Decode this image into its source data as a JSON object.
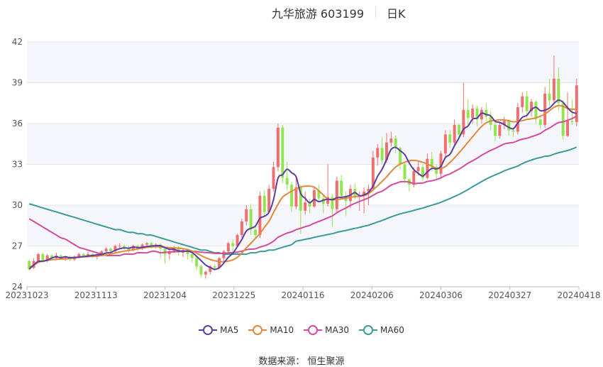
{
  "title": {
    "name": "九华旅游 603199",
    "period": "日K"
  },
  "source": "数据来源： 恒生聚源",
  "chart_data": {
    "type": "candlestick",
    "x_ticks": [
      "20231023",
      "20231113",
      "20231204",
      "20231225",
      "20240116",
      "20240206",
      "20240306",
      "20240327",
      "20240418"
    ],
    "ylim": [
      24,
      42
    ],
    "y_ticks": [
      24,
      27,
      30,
      33,
      36,
      39,
      42
    ],
    "colors": {
      "up": "#f06e6e",
      "down": "#91e650"
    },
    "candles": [
      [
        25.9,
        25.3,
        26.0,
        25.2
      ],
      [
        25.4,
        25.9,
        26.1,
        25.3
      ],
      [
        25.9,
        26.4,
        26.5,
        25.8
      ],
      [
        26.4,
        25.9,
        26.5,
        25.8
      ],
      [
        25.9,
        26.3,
        26.4,
        25.8
      ],
      [
        26.3,
        26.1,
        26.4,
        26.0
      ],
      [
        26.1,
        26.3,
        26.5,
        26.0
      ],
      [
        26.3,
        26.1,
        26.4,
        26.0
      ],
      [
        26.1,
        26.2,
        26.3,
        25.9
      ],
      [
        26.2,
        26.0,
        26.3,
        25.9
      ],
      [
        26.0,
        26.2,
        26.3,
        25.9
      ],
      [
        26.2,
        26.4,
        26.5,
        26.1
      ],
      [
        26.4,
        26.3,
        26.5,
        26.2
      ],
      [
        26.3,
        26.4,
        26.6,
        26.2
      ],
      [
        26.4,
        26.2,
        26.5,
        26.1
      ],
      [
        26.2,
        26.4,
        26.5,
        26.0
      ],
      [
        26.4,
        26.6,
        26.7,
        26.3
      ],
      [
        26.6,
        26.8,
        26.9,
        26.5
      ],
      [
        26.8,
        26.6,
        26.9,
        26.5
      ],
      [
        26.6,
        27.0,
        27.1,
        26.5
      ],
      [
        27.0,
        27.0,
        27.2,
        26.8
      ],
      [
        27.0,
        26.9,
        27.1,
        26.7
      ],
      [
        26.9,
        26.7,
        27.0,
        26.5
      ],
      [
        26.7,
        27.0,
        27.1,
        26.6
      ],
      [
        27.0,
        26.8,
        27.1,
        26.6
      ],
      [
        26.8,
        27.1,
        27.2,
        26.7
      ],
      [
        27.1,
        27.2,
        27.3,
        27.0
      ],
      [
        27.2,
        26.9,
        27.3,
        26.8
      ],
      [
        26.9,
        27.1,
        27.2,
        26.8
      ],
      [
        27.1,
        26.8,
        27.2,
        26.1
      ],
      [
        26.8,
        26.4,
        26.9,
        25.7
      ],
      [
        26.4,
        26.6,
        26.7,
        26.0
      ],
      [
        26.6,
        26.9,
        27.0,
        26.5
      ],
      [
        26.9,
        26.5,
        27.0,
        26.3
      ],
      [
        26.5,
        26.7,
        26.8,
        26.2
      ],
      [
        26.7,
        26.4,
        26.8,
        26.0
      ],
      [
        26.4,
        26.1,
        26.6,
        25.8
      ],
      [
        26.1,
        25.5,
        26.2,
        25.2
      ],
      [
        25.5,
        24.9,
        25.6,
        24.7
      ],
      [
        24.9,
        25.1,
        25.2,
        24.6
      ],
      [
        25.1,
        25.5,
        25.6,
        24.9
      ],
      [
        25.5,
        25.4,
        25.7,
        25.2
      ],
      [
        25.4,
        26.1,
        26.2,
        25.3
      ],
      [
        26.1,
        26.6,
        26.7,
        25.9
      ],
      [
        26.6,
        27.2,
        27.3,
        26.4
      ],
      [
        27.2,
        27.0,
        27.5,
        26.6
      ],
      [
        27.0,
        27.8,
        27.9,
        26.9
      ],
      [
        27.8,
        28.8,
        29.0,
        27.6
      ],
      [
        28.8,
        29.7,
        30.0,
        28.5
      ],
      [
        29.7,
        28.2,
        30.1,
        27.8
      ],
      [
        28.2,
        27.8,
        28.5,
        27.6
      ],
      [
        27.8,
        30.7,
        31.0,
        27.6
      ],
      [
        30.7,
        29.5,
        31.1,
        29.2
      ],
      [
        29.5,
        31.2,
        31.5,
        29.4
      ],
      [
        31.2,
        32.8,
        33.2,
        31.0
      ],
      [
        32.8,
        35.7,
        36.0,
        32.5
      ],
      [
        35.7,
        32.0,
        35.9,
        31.6
      ],
      [
        32.0,
        31.5,
        33.2,
        31.1
      ],
      [
        31.5,
        29.9,
        31.7,
        29.5
      ],
      [
        29.9,
        31.3,
        32.0,
        29.7
      ],
      [
        31.3,
        29.6,
        31.5,
        27.9
      ],
      [
        29.6,
        30.2,
        31.0,
        29.3
      ],
      [
        30.2,
        29.9,
        30.5,
        29.4
      ],
      [
        29.9,
        31.1,
        31.3,
        29.8
      ],
      [
        31.1,
        30.5,
        31.5,
        30.2
      ],
      [
        30.5,
        30.1,
        30.7,
        29.4
      ],
      [
        30.1,
        30.6,
        33.0,
        29.9
      ],
      [
        30.6,
        29.7,
        30.8,
        28.4
      ],
      [
        29.7,
        31.8,
        32.1,
        29.5
      ],
      [
        31.8,
        30.7,
        32.2,
        30.4
      ],
      [
        30.7,
        30.3,
        31.0,
        29.2
      ],
      [
        30.3,
        31.2,
        31.5,
        29.8
      ],
      [
        31.2,
        30.6,
        31.6,
        30.4
      ],
      [
        30.6,
        30.7,
        31.0,
        29.6
      ],
      [
        30.7,
        31.0,
        31.3,
        29.4
      ],
      [
        31.0,
        31.2,
        31.5,
        30.0
      ],
      [
        31.2,
        33.5,
        34.0,
        31.0
      ],
      [
        33.5,
        34.2,
        34.5,
        32.9
      ],
      [
        34.2,
        33.3,
        35.0,
        33.0
      ],
      [
        33.3,
        34.6,
        35.3,
        33.1
      ],
      [
        34.6,
        34.9,
        35.4,
        34.3
      ],
      [
        34.9,
        34.2,
        35.1,
        33.8
      ],
      [
        34.2,
        33.0,
        34.3,
        32.6
      ],
      [
        33.0,
        31.9,
        33.2,
        31.6
      ],
      [
        31.9,
        31.5,
        32.0,
        31.0
      ],
      [
        31.5,
        32.5,
        32.8,
        31.3
      ],
      [
        32.5,
        32.8,
        33.2,
        32.2
      ],
      [
        32.8,
        32.0,
        33.0,
        31.8
      ],
      [
        32.0,
        33.4,
        33.8,
        31.9
      ],
      [
        33.4,
        32.8,
        33.9,
        32.5
      ],
      [
        32.8,
        32.3,
        33.0,
        31.9
      ],
      [
        32.3,
        33.8,
        34.0,
        32.0
      ],
      [
        33.8,
        35.2,
        35.5,
        33.5
      ],
      [
        35.2,
        34.6,
        35.5,
        34.2
      ],
      [
        34.6,
        35.9,
        36.3,
        34.3
      ],
      [
        35.9,
        35.2,
        36.0,
        34.8
      ],
      [
        35.2,
        37.0,
        39.0,
        35.0
      ],
      [
        37.0,
        36.4,
        37.8,
        35.9
      ],
      [
        36.4,
        37.1,
        37.4,
        36.0
      ],
      [
        37.1,
        36.3,
        37.3,
        35.8
      ],
      [
        36.3,
        37.0,
        37.2,
        36.0
      ],
      [
        37.0,
        36.5,
        37.5,
        36.2
      ],
      [
        36.5,
        35.9,
        36.9,
        35.5
      ],
      [
        35.9,
        35.1,
        36.2,
        34.7
      ],
      [
        35.1,
        35.9,
        36.1,
        34.9
      ],
      [
        35.9,
        36.2,
        36.5,
        35.6
      ],
      [
        36.2,
        35.5,
        36.3,
        35.1
      ],
      [
        35.5,
        35.4,
        35.7,
        35.0
      ],
      [
        35.4,
        37.2,
        37.5,
        35.2
      ],
      [
        37.2,
        38.0,
        38.3,
        36.8
      ],
      [
        38.0,
        36.9,
        38.4,
        36.4
      ],
      [
        36.9,
        37.6,
        37.8,
        36.5
      ],
      [
        37.6,
        36.3,
        37.7,
        36.0
      ],
      [
        36.3,
        35.9,
        36.6,
        35.6
      ],
      [
        35.9,
        38.2,
        38.7,
        35.7
      ],
      [
        38.2,
        37.7,
        39.3,
        37.3
      ],
      [
        37.7,
        39.3,
        41.0,
        37.4
      ],
      [
        39.3,
        37.5,
        40.1,
        36.9
      ],
      [
        37.5,
        35.1,
        37.7,
        34.8
      ],
      [
        35.1,
        36.2,
        38.3,
        35.0
      ],
      [
        36.2,
        36.1,
        37.8,
        35.9
      ],
      [
        36.1,
        38.8,
        39.3,
        35.8
      ]
    ],
    "series": [
      {
        "name": "MA5",
        "color": "#5b3ea1"
      },
      {
        "name": "MA10",
        "color": "#e3883a"
      },
      {
        "name": "MA30",
        "color": "#d44a9e"
      },
      {
        "name": "MA60",
        "color": "#3c9a9a"
      }
    ],
    "ma30_start": [
      29.0,
      28.8,
      28.6,
      28.4,
      28.2,
      28.0,
      27.8,
      27.6,
      27.5,
      27.3,
      27.1,
      26.9,
      26.8,
      26.7,
      26.6,
      26.5,
      26.4,
      26.3,
      26.3,
      26.3,
      26.3,
      26.4,
      26.4,
      26.4,
      26.5,
      26.5,
      26.5,
      26.6,
      26.6
    ],
    "ma60_start": [
      30.1,
      30.0,
      29.9,
      29.8,
      29.7,
      29.6,
      29.5,
      29.4,
      29.3,
      29.2,
      29.1,
      29.0,
      28.9,
      28.8,
      28.7,
      28.6,
      28.5,
      28.4,
      28.3,
      28.2,
      28.2,
      28.1,
      28.0,
      28.0,
      27.9,
      27.9,
      27.8,
      27.8,
      27.7,
      27.6,
      27.5,
      27.4,
      27.3,
      27.2,
      27.1,
      27.0,
      26.9,
      26.8,
      26.7,
      26.7,
      26.6,
      26.5,
      26.5,
      26.4,
      26.4,
      26.4,
      26.4,
      26.4,
      26.4,
      26.5,
      26.5,
      26.6,
      26.6,
      26.7,
      26.7,
      26.8,
      26.9,
      27.0,
      27.1
    ]
  }
}
